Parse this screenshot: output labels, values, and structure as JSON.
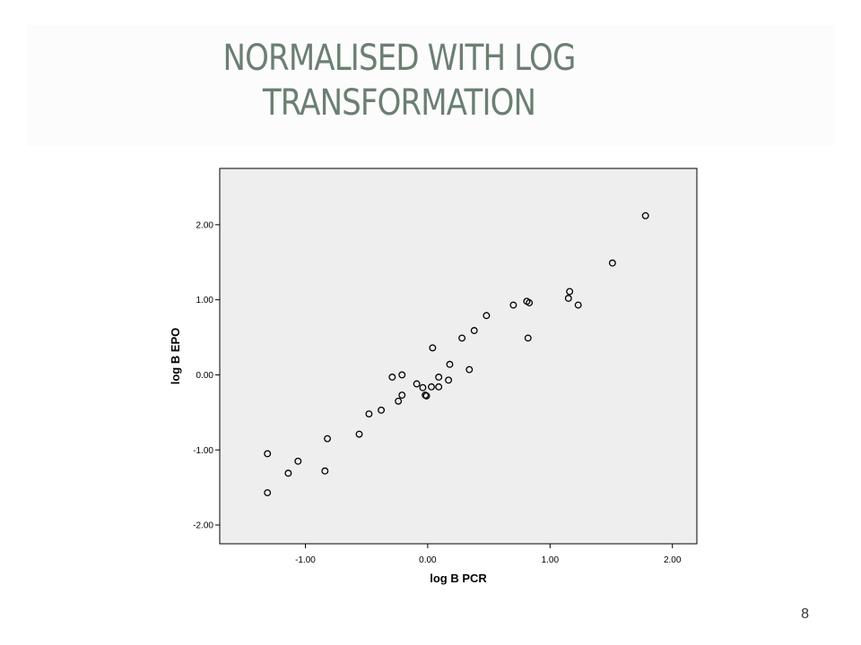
{
  "slide": {
    "title_line1": "NORMALISED WITH LOG",
    "title_line2": "TRANSFORMATION",
    "page_number": "8"
  },
  "colors": {
    "title": "#6b7f72",
    "plot_background": "#eeeeee",
    "marker": "#000000"
  },
  "chart_data": {
    "type": "scatter",
    "xlabel": "log B PCR",
    "ylabel": "log B EPO",
    "xlim": [
      -1.7,
      2.2
    ],
    "ylim": [
      -2.25,
      2.75
    ],
    "xticks": [
      -1.0,
      0.0,
      1.0,
      2.0
    ],
    "xtick_labels": [
      "-1.00",
      "0.00",
      "1.00",
      "2.00"
    ],
    "yticks": [
      -2.0,
      -1.0,
      0.0,
      1.0,
      2.0
    ],
    "ytick_labels": [
      "-2.00",
      "-1.00",
      "0.00",
      "1.00",
      "2.00"
    ],
    "grid": false,
    "legend": "none",
    "marker": "open-circle",
    "points": [
      [
        -1.31,
        -1.05
      ],
      [
        -1.31,
        -1.57
      ],
      [
        -1.14,
        -1.31
      ],
      [
        -1.06,
        -1.15
      ],
      [
        -0.84,
        -1.28
      ],
      [
        -0.82,
        -0.85
      ],
      [
        -0.56,
        -0.79
      ],
      [
        -0.48,
        -0.52
      ],
      [
        -0.38,
        -0.47
      ],
      [
        -0.29,
        -0.03
      ],
      [
        -0.24,
        -0.35
      ],
      [
        -0.21,
        0.0
      ],
      [
        -0.21,
        -0.27
      ],
      [
        -0.09,
        -0.12
      ],
      [
        -0.04,
        -0.17
      ],
      [
        -0.02,
        -0.27
      ],
      [
        -0.01,
        -0.28
      ],
      [
        0.03,
        -0.16
      ],
      [
        0.04,
        0.36
      ],
      [
        0.09,
        -0.03
      ],
      [
        0.09,
        -0.16
      ],
      [
        0.17,
        -0.07
      ],
      [
        0.18,
        0.14
      ],
      [
        0.28,
        0.49
      ],
      [
        0.34,
        0.07
      ],
      [
        0.38,
        0.59
      ],
      [
        0.48,
        0.79
      ],
      [
        0.7,
        0.93
      ],
      [
        0.81,
        0.98
      ],
      [
        0.82,
        0.49
      ],
      [
        0.83,
        0.96
      ],
      [
        1.15,
        1.02
      ],
      [
        1.16,
        1.11
      ],
      [
        1.23,
        0.93
      ],
      [
        1.51,
        1.49
      ],
      [
        1.78,
        2.12
      ]
    ]
  }
}
